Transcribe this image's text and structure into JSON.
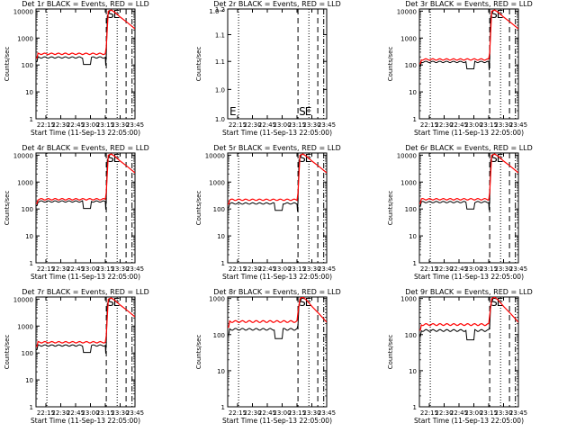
{
  "figure": {
    "xlabel": "Start Time (11-Sep-13 22:05:00)",
    "ylabel": "Counts/sec",
    "x_ticks": [
      "22:15",
      "22:30",
      "22:45",
      "23:00",
      "23:15",
      "23:30",
      "23:45"
    ],
    "x_range_minutes": [
      0,
      100
    ],
    "colors": {
      "events": "#000000",
      "lld": "#ff0000",
      "axes": "#000000",
      "background": "#ffffff"
    },
    "markers": {
      "S_label": "S",
      "E_label": "E"
    }
  },
  "chart_data": [
    {
      "type": "line",
      "title": "Det 1r BLACK = Events, RED = LLD",
      "ylog": true,
      "ylim": [
        1,
        12000
      ],
      "y_ticks": [
        {
          "v": 1,
          "label": "1"
        },
        {
          "v": 10,
          "label": "10"
        },
        {
          "v": 100,
          "label": "100"
        },
        {
          "v": 1000,
          "label": "1000"
        },
        {
          "v": 10000,
          "label": "10000"
        }
      ],
      "markers": {
        "dotted": [
          11,
          82
        ],
        "dashed": [
          71,
          91
        ],
        "dashdot": [
          97
        ],
        "S": 71,
        "E": 77
      },
      "events": {
        "level": 190,
        "dip": true,
        "spike": true
      },
      "lld": {
        "level": 260,
        "rise_to": 11000
      },
      "has_data": true
    },
    {
      "type": "line",
      "title": "Det 2r BLACK = Events, RED = LLD",
      "ylog": true,
      "ylim": [
        1,
        1.2
      ],
      "y_ticks": [
        {
          "v": 1,
          "label": "1.0"
        },
        {
          "v": 1.05,
          "label": "1.0"
        },
        {
          "v": 1.1,
          "label": "1.1"
        },
        {
          "v": 1.15,
          "label": "1.1"
        },
        {
          "v": 1.2,
          "label": "1.2"
        }
      ],
      "y_extra_top_label": "1.0⁻⁸",
      "markers": {
        "dotted": [
          11,
          82
        ],
        "dashed": [
          71,
          91
        ],
        "dashdot": [
          97
        ],
        "S": 71,
        "E": 77
      },
      "has_data": false
    },
    {
      "type": "line",
      "title": "Det 3r BLACK = Events, RED = LLD",
      "ylog": true,
      "ylim": [
        1,
        12000
      ],
      "y_ticks": [
        {
          "v": 1,
          "label": "1"
        },
        {
          "v": 10,
          "label": "10"
        },
        {
          "v": 100,
          "label": "100"
        },
        {
          "v": 1000,
          "label": "1000"
        },
        {
          "v": 10000,
          "label": "10000"
        }
      ],
      "markers": {
        "dotted": [
          11,
          82
        ],
        "dashed": [
          71,
          91
        ],
        "dashdot": [
          97
        ],
        "S": 71,
        "E": 77
      },
      "events": {
        "level": 130,
        "dip": true,
        "spike": true
      },
      "lld": {
        "level": 160,
        "rise_to": 11000
      },
      "has_data": true
    },
    {
      "type": "line",
      "title": "Det 4r BLACK = Events, RED = LLD",
      "ylog": true,
      "ylim": [
        1,
        12000
      ],
      "y_ticks": [
        {
          "v": 1,
          "label": "1"
        },
        {
          "v": 10,
          "label": "10"
        },
        {
          "v": 100,
          "label": "100"
        },
        {
          "v": 1000,
          "label": "1000"
        },
        {
          "v": 10000,
          "label": "10000"
        }
      ],
      "markers": {
        "dotted": [
          11,
          82
        ],
        "dashed": [
          71,
          91
        ],
        "dashdot": [
          97
        ],
        "S": 71,
        "E": 77
      },
      "events": {
        "level": 190,
        "dip": true,
        "spike": true
      },
      "lld": {
        "level": 230,
        "rise_to": 11000
      },
      "has_data": true
    },
    {
      "type": "line",
      "title": "Det 5r BLACK = Events, RED = LLD",
      "ylog": true,
      "ylim": [
        1,
        12000
      ],
      "y_ticks": [
        {
          "v": 1,
          "label": "1"
        },
        {
          "v": 10,
          "label": "10"
        },
        {
          "v": 100,
          "label": "100"
        },
        {
          "v": 1000,
          "label": "1000"
        },
        {
          "v": 10000,
          "label": "10000"
        }
      ],
      "markers": {
        "dotted": [
          11,
          82
        ],
        "dashed": [
          71,
          91
        ],
        "dashdot": [
          97
        ],
        "S": 71,
        "E": 77
      },
      "events": {
        "level": 160,
        "dip": true,
        "spike": true
      },
      "lld": {
        "level": 220,
        "rise_to": 11000
      },
      "has_data": true
    },
    {
      "type": "line",
      "title": "Det 6r BLACK = Events, RED = LLD",
      "ylog": true,
      "ylim": [
        1,
        12000
      ],
      "y_ticks": [
        {
          "v": 1,
          "label": "1"
        },
        {
          "v": 10,
          "label": "10"
        },
        {
          "v": 100,
          "label": "100"
        },
        {
          "v": 1000,
          "label": "1000"
        },
        {
          "v": 10000,
          "label": "10000"
        }
      ],
      "markers": {
        "dotted": [
          11,
          82
        ],
        "dashed": [
          71,
          91
        ],
        "dashdot": [
          97
        ],
        "S": 71,
        "E": 77
      },
      "events": {
        "level": 180,
        "dip": true,
        "spike": true
      },
      "lld": {
        "level": 230,
        "rise_to": 11000
      },
      "has_data": true
    },
    {
      "type": "line",
      "title": "Det 7r BLACK = Events, RED = LLD",
      "ylog": true,
      "ylim": [
        1,
        12000
      ],
      "y_ticks": [
        {
          "v": 1,
          "label": "1"
        },
        {
          "v": 10,
          "label": "10"
        },
        {
          "v": 100,
          "label": "100"
        },
        {
          "v": 1000,
          "label": "1000"
        },
        {
          "v": 10000,
          "label": "10000"
        }
      ],
      "markers": {
        "dotted": [
          11,
          82
        ],
        "dashed": [
          71,
          91
        ],
        "dashdot": [
          97
        ],
        "S": 71,
        "E": 77
      },
      "events": {
        "level": 190,
        "dip": true,
        "spike": true
      },
      "lld": {
        "level": 250,
        "rise_to": 11000
      },
      "has_data": true
    },
    {
      "type": "line",
      "title": "Det 8r BLACK = Events, RED = LLD",
      "ylog": true,
      "ylim": [
        1,
        1100
      ],
      "y_ticks": [
        {
          "v": 1,
          "label": "1"
        },
        {
          "v": 10,
          "label": "10"
        },
        {
          "v": 100,
          "label": "100"
        },
        {
          "v": 1000,
          "label": "1000"
        }
      ],
      "markers": {
        "dotted": [
          11,
          82
        ],
        "dashed": [
          71,
          91
        ],
        "dashdot": [
          97
        ],
        "S": 71,
        "E": 77
      },
      "events": {
        "level": 140,
        "dip": true,
        "spike": false
      },
      "lld": {
        "level": 230,
        "rise_to": 1100
      },
      "has_data": true
    },
    {
      "type": "line",
      "title": "Det 9r BLACK = Events, RED = LLD",
      "ylog": true,
      "ylim": [
        1,
        1100
      ],
      "y_ticks": [
        {
          "v": 1,
          "label": "1"
        },
        {
          "v": 10,
          "label": "10"
        },
        {
          "v": 100,
          "label": "100"
        },
        {
          "v": 1000,
          "label": "1000"
        }
      ],
      "markers": {
        "dotted": [
          11,
          82
        ],
        "dashed": [
          71,
          91
        ],
        "dashdot": [
          97
        ],
        "S": 71,
        "E": 77
      },
      "events": {
        "level": 130,
        "dip": true,
        "spike": false
      },
      "lld": {
        "level": 190,
        "rise_to": 1100
      },
      "has_data": true
    }
  ]
}
